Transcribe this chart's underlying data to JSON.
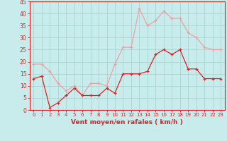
{
  "x": [
    0,
    1,
    2,
    3,
    4,
    5,
    6,
    7,
    8,
    9,
    10,
    11,
    12,
    13,
    14,
    15,
    16,
    17,
    18,
    19,
    20,
    21,
    22,
    23
  ],
  "wind_avg": [
    13,
    14,
    1,
    3,
    6,
    9,
    6,
    6,
    6,
    9,
    7,
    15,
    15,
    15,
    16,
    23,
    25,
    23,
    25,
    17,
    17,
    13,
    13,
    13
  ],
  "wind_gust": [
    19,
    19,
    16,
    11,
    8,
    10,
    6,
    11,
    11,
    10,
    19,
    26,
    26,
    42,
    35,
    37,
    41,
    38,
    38,
    32,
    30,
    26,
    25,
    25
  ],
  "avg_color": "#dd2222",
  "gust_color": "#f0a0a0",
  "bg_color": "#c8ecec",
  "grid_color": "#aad4d4",
  "xlabel": "Vent moyen/en rafales ( km/h )",
  "xlabel_color": "#dd2222",
  "tick_color": "#dd2222",
  "ylim": [
    0,
    45
  ],
  "yticks": [
    0,
    5,
    10,
    15,
    20,
    25,
    30,
    35,
    40,
    45
  ]
}
